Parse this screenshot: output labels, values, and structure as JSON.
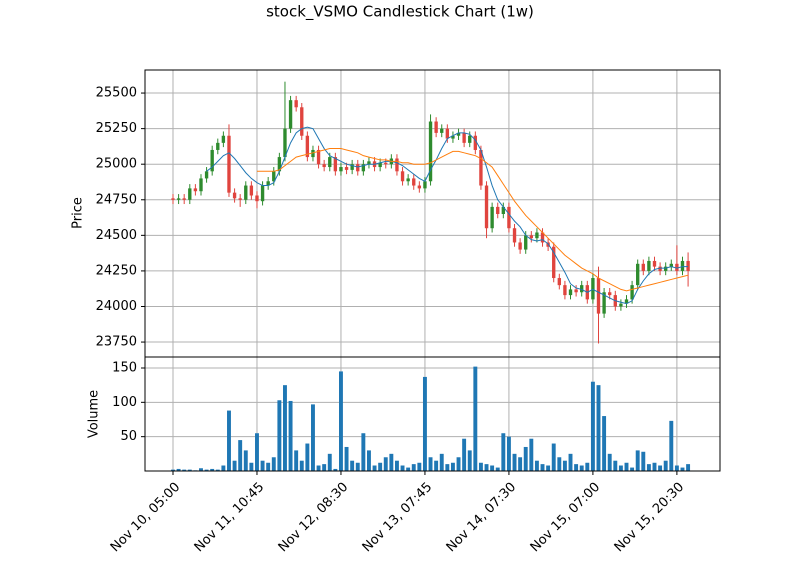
{
  "chart_data": {
    "type": "candlestick",
    "title": "stock_VSMO Candlestick Chart (1w)",
    "ylabel": "Price",
    "grid": true,
    "up_color": "#2e8b2e",
    "down_color": "#e0443e",
    "xlim": [
      -5,
      97.7
    ],
    "xticks": [
      {
        "value": 0,
        "label": "Nov 10, 05:00"
      },
      {
        "value": 15,
        "label": "Nov 11, 10:45"
      },
      {
        "value": 30,
        "label": "Nov 12, 08:30"
      },
      {
        "value": 45,
        "label": "Nov 13, 07:45"
      },
      {
        "value": 60,
        "label": "Nov 14, 07:30"
      },
      {
        "value": 75,
        "label": "Nov 15, 07:00"
      },
      {
        "value": 90,
        "label": "Nov 15, 20:30"
      }
    ],
    "ylim": [
      23645,
      25662
    ],
    "yticks": [
      23750,
      24000,
      24250,
      24500,
      24750,
      25000,
      25250,
      25500
    ],
    "open": [
      24760,
      24750,
      24760,
      24750,
      24830,
      24810,
      24900,
      24950,
      25100,
      25150,
      25200,
      24800,
      24760,
      24750,
      24850,
      24780,
      24740,
      24850,
      24880,
      24950,
      25050,
      25250,
      25450,
      25400,
      25200,
      25050,
      25100,
      25000,
      24980,
      25050,
      24950,
      24980,
      24960,
      25000,
      24950,
      25000,
      25020,
      24980,
      25010,
      25000,
      25040,
      24950,
      24880,
      24900,
      24850,
      24830,
      24880,
      25300,
      25220,
      25250,
      25180,
      25200,
      25220,
      25150,
      25200,
      25100,
      24850,
      24550,
      24700,
      24650,
      24700,
      24550,
      24450,
      24400,
      24500,
      24480,
      24520,
      24450,
      24420,
      24200,
      24150,
      24080,
      24120,
      24100,
      24150,
      24050,
      24200,
      23950,
      24100,
      24080,
      24000,
      24020,
      24050,
      24150,
      24300,
      24250,
      24320,
      24280,
      24250,
      24280,
      24300,
      24250,
      24320
    ],
    "high": [
      24790,
      24790,
      24790,
      24860,
      24860,
      24930,
      24980,
      25130,
      25180,
      25230,
      25280,
      24830,
      24790,
      24880,
      24880,
      24810,
      24880,
      24910,
      24980,
      25080,
      25580,
      25480,
      25480,
      25430,
      25230,
      25130,
      25130,
      25030,
      25080,
      25080,
      25010,
      25010,
      25030,
      25030,
      25030,
      25050,
      25050,
      25040,
      25040,
      25070,
      25070,
      24980,
      24930,
      24930,
      24880,
      24910,
      25350,
      25330,
      25280,
      25280,
      25230,
      25250,
      25250,
      25230,
      25230,
      25130,
      24880,
      24730,
      24730,
      24730,
      24730,
      24580,
      24480,
      24530,
      24530,
      24550,
      24550,
      24480,
      24450,
      24230,
      24180,
      24150,
      24150,
      24180,
      24180,
      24230,
      24280,
      24130,
      24130,
      24110,
      24050,
      24080,
      24180,
      24330,
      24330,
      24350,
      24350,
      24310,
      24310,
      24330,
      24430,
      24350,
      24380
    ],
    "low": [
      24720,
      24720,
      24720,
      24720,
      24780,
      24780,
      24870,
      24920,
      25070,
      25120,
      24770,
      24730,
      24700,
      24720,
      24750,
      24690,
      24710,
      24820,
      24850,
      24920,
      25020,
      25220,
      25370,
      25170,
      25020,
      25020,
      24970,
      24950,
      24950,
      24920,
      24920,
      24930,
      24930,
      24920,
      24920,
      24970,
      24950,
      24950,
      24970,
      24970,
      24920,
      24850,
      24850,
      24820,
      24800,
      24800,
      24850,
      25190,
      25190,
      25150,
      25150,
      25170,
      25120,
      25120,
      25070,
      24820,
      24480,
      24520,
      24620,
      24620,
      24520,
      24420,
      24370,
      24370,
      24450,
      24450,
      24420,
      24390,
      24170,
      24120,
      24050,
      24050,
      24070,
      24070,
      24020,
      24020,
      23740,
      23920,
      24050,
      23970,
      23970,
      23990,
      24020,
      24120,
      24220,
      24220,
      24250,
      24220,
      24220,
      24250,
      24220,
      24220,
      24140
    ],
    "close": [
      24750,
      24760,
      24750,
      24830,
      24810,
      24900,
      24950,
      25100,
      25150,
      25200,
      24800,
      24760,
      24750,
      24850,
      24780,
      24740,
      24850,
      24880,
      24950,
      25050,
      25250,
      25450,
      25400,
      25200,
      25050,
      25100,
      25000,
      24980,
      25050,
      24950,
      24980,
      24960,
      25000,
      24950,
      25000,
      25020,
      24980,
      25010,
      25000,
      25040,
      24950,
      24880,
      24900,
      24850,
      24830,
      24880,
      25300,
      25220,
      25250,
      25180,
      25200,
      25220,
      25150,
      25200,
      25100,
      24850,
      24550,
      24700,
      24650,
      24700,
      24550,
      24450,
      24400,
      24500,
      24480,
      24520,
      24450,
      24420,
      24200,
      24150,
      24080,
      24120,
      24100,
      24150,
      24050,
      24200,
      23950,
      24100,
      24080,
      24000,
      24020,
      24050,
      24150,
      24300,
      24250,
      24320,
      24280,
      24250,
      24280,
      24300,
      24250,
      24320,
      24250
    ],
    "moving_averages": [
      {
        "color": "#1f77b4",
        "values": [
          null,
          null,
          null,
          null,
          null,
          null,
          24950,
          24980,
          25020,
          25060,
          25080,
          25040,
          24990,
          24940,
          24900,
          24870,
          24850,
          24850,
          24870,
          24950,
          25050,
          25150,
          25220,
          25250,
          25260,
          25250,
          25180,
          25110,
          25060,
          25040,
          25020,
          25000,
          24990,
          24980,
          24990,
          25000,
          25000,
          25010,
          25020,
          25020,
          25010,
          24990,
          24960,
          24930,
          24900,
          24880,
          24960,
          25030,
          25110,
          25180,
          25200,
          25220,
          25220,
          25210,
          25170,
          25100,
          24980,
          24850,
          24750,
          24700,
          24650,
          24600,
          24560,
          24500,
          24470,
          24460,
          24470,
          24440,
          24380,
          24310,
          24240,
          24160,
          24130,
          24120,
          24100,
          24120,
          24100,
          24080,
          24060,
          24040,
          24030,
          24020,
          24040,
          24120,
          24180,
          24230,
          24260,
          24270,
          24270,
          24280,
          24270,
          24280,
          24280
        ]
      },
      {
        "color": "#ff7f0e",
        "values": [
          null,
          null,
          null,
          null,
          null,
          null,
          null,
          null,
          null,
          null,
          null,
          null,
          null,
          null,
          null,
          24950,
          24950,
          24950,
          24950,
          24960,
          24990,
          25020,
          25050,
          25060,
          25070,
          25080,
          25090,
          25100,
          25110,
          25110,
          25110,
          25100,
          25090,
          25080,
          25060,
          25050,
          25040,
          25030,
          25030,
          25020,
          25020,
          25010,
          25010,
          25000,
          25000,
          25000,
          25010,
          25030,
          25050,
          25070,
          25090,
          25090,
          25080,
          25070,
          25060,
          25040,
          25010,
          24980,
          24920,
          24860,
          24800,
          24740,
          24690,
          24640,
          24600,
          24560,
          24520,
          24480,
          24440,
          24400,
          24360,
          24330,
          24300,
          24270,
          24250,
          24230,
          24200,
          24180,
          24160,
          24140,
          24120,
          24110,
          24120,
          24130,
          24140,
          24150,
          24160,
          24170,
          24180,
          24190,
          24200,
          24210,
          24220
        ]
      }
    ],
    "volume": {
      "ylabel": "Volume",
      "color": "#1f77b4",
      "ylim": [
        0,
        166
      ],
      "yticks": [
        50,
        100,
        150
      ],
      "values": [
        2,
        3,
        2,
        2,
        1,
        4,
        2,
        3,
        2,
        8,
        88,
        15,
        45,
        30,
        12,
        55,
        15,
        12,
        20,
        103,
        125,
        102,
        30,
        15,
        40,
        97,
        8,
        10,
        25,
        3,
        145,
        35,
        15,
        12,
        55,
        30,
        8,
        12,
        20,
        25,
        15,
        8,
        5,
        10,
        12,
        137,
        20,
        15,
        25,
        10,
        12,
        20,
        47,
        30,
        152,
        12,
        10,
        8,
        5,
        55,
        50,
        25,
        20,
        35,
        47,
        15,
        10,
        8,
        40,
        20,
        15,
        25,
        10,
        8,
        12,
        130,
        125,
        80,
        25,
        15,
        8,
        12,
        5,
        30,
        28,
        10,
        12,
        8,
        15,
        73,
        8,
        5,
        10
      ]
    }
  }
}
